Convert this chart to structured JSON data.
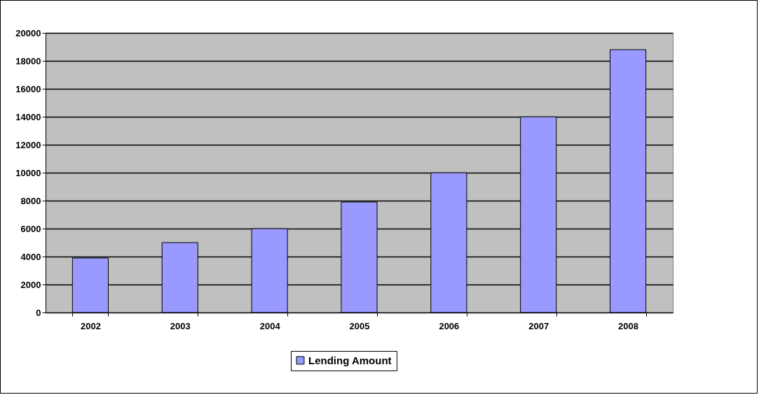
{
  "chart_data": {
    "type": "bar",
    "categories": [
      "2002",
      "2003",
      "2004",
      "2005",
      "2006",
      "2007",
      "2008"
    ],
    "series": [
      {
        "name": "Lending Amount",
        "color": "#9999ff",
        "values": [
          3900,
          5000,
          6000,
          7900,
          10000,
          14000,
          18800
        ]
      }
    ],
    "ylim": [
      0,
      20000
    ],
    "yticks": [
      0,
      2000,
      4000,
      6000,
      8000,
      10000,
      12000,
      14000,
      16000,
      18000,
      20000
    ],
    "grid": "y",
    "legend": "bottom"
  }
}
